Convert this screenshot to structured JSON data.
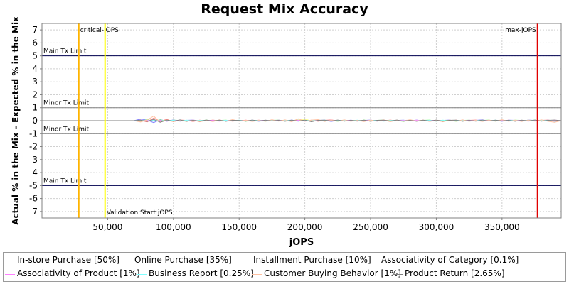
{
  "chart_data": {
    "type": "line",
    "title": "Request Mix Accuracy",
    "xlabel": "jOPS",
    "ylabel": "Actual % in the Mix - Expected % in the Mix",
    "xlim": [
      0,
      395000
    ],
    "ylim": [
      -7.5,
      7.5
    ],
    "x_ticks": [
      50000,
      100000,
      150000,
      200000,
      250000,
      300000,
      350000
    ],
    "x_tick_labels": [
      "50,000",
      "100,000",
      "150,000",
      "200,000",
      "250,000",
      "300,000",
      "350,000"
    ],
    "y_ticks": [
      7,
      6,
      5,
      4,
      3,
      2,
      1,
      0,
      -1,
      -2,
      -3,
      -4,
      -5,
      -6,
      -7
    ],
    "y_tick_labels": [
      "7",
      "6",
      "5",
      "4",
      "3",
      "2",
      "1",
      "0",
      "-1",
      "-2",
      "-3",
      "-4",
      "-5",
      "-6",
      "-7"
    ],
    "grid": true,
    "hlines": [
      {
        "y": 5,
        "label": "Main Tx Limit",
        "color": "#000050",
        "label_pos": "above"
      },
      {
        "y": 1,
        "label": "Minor Tx Limit",
        "color": "#808080",
        "label_pos": "above"
      },
      {
        "y": -1,
        "label": "Minor Tx Limit",
        "color": "#808080",
        "label_pos": "above"
      },
      {
        "y": -5,
        "label": "Main Tx Limit",
        "color": "#000050",
        "label_pos": "above"
      }
    ],
    "vlines": [
      {
        "x": 28000,
        "label": "critical-jOPS",
        "color": "#ffb400",
        "label_pos": "top-right"
      },
      {
        "x": 48000,
        "label": "Validation Start jOPS",
        "color": "#ffff00",
        "label_pos": "bottom-right"
      },
      {
        "x": 377000,
        "label": "max-jOPS",
        "color": "#e00000",
        "label_pos": "top-left"
      }
    ],
    "x": [
      0,
      5000,
      10000,
      15000,
      20000,
      25000,
      30000,
      35000,
      40000,
      45000,
      50000,
      55000,
      60000,
      65000,
      70000,
      75000,
      80000,
      85000,
      90000,
      95000,
      100000,
      105000,
      110000,
      115000,
      120000,
      125000,
      130000,
      135000,
      140000,
      145000,
      150000,
      155000,
      160000,
      165000,
      170000,
      175000,
      180000,
      185000,
      190000,
      195000,
      200000,
      205000,
      210000,
      215000,
      220000,
      225000,
      230000,
      235000,
      240000,
      245000,
      250000,
      255000,
      260000,
      265000,
      270000,
      275000,
      280000,
      285000,
      290000,
      295000,
      300000,
      305000,
      310000,
      315000,
      320000,
      325000,
      330000,
      335000,
      340000,
      345000,
      350000,
      355000,
      360000,
      365000,
      370000,
      375000,
      380000,
      385000,
      390000,
      395000
    ],
    "series": [
      {
        "name": "In-store Purchase [50%]",
        "color": "#ff8080",
        "values": [
          0,
          0,
          0,
          0,
          0,
          0,
          0,
          0,
          0,
          0,
          0,
          0,
          0,
          0,
          0,
          0.05,
          -0.1,
          0.2,
          -0.05,
          0.1,
          -0.08,
          0.05,
          0.02,
          -0.06,
          0.04,
          -0.03,
          0.05,
          -0.02,
          0.03,
          -0.04,
          0.02,
          0.01,
          -0.03,
          0.04,
          -0.02,
          0.03,
          -0.01,
          0.02,
          -0.03,
          0.05,
          -0.02,
          0.04,
          -0.05,
          0.03,
          0.06,
          -0.02,
          0.04,
          -0.03,
          0.02,
          0.01,
          -0.04,
          0.03,
          -0.02,
          0.05,
          -0.03,
          0.02,
          0.04,
          -0.02,
          0.03,
          -0.05,
          0.02,
          0.01,
          -0.03,
          0.04,
          -0.02,
          0.03,
          0.05,
          -0.04,
          0.02,
          0.03,
          -0.02,
          0.04,
          -0.03,
          0.02,
          0.01,
          -0.02,
          0.03,
          0.05,
          -0.02,
          0.0
        ]
      },
      {
        "name": "Online Purchase [35%]",
        "color": "#8080ff",
        "values": [
          0,
          0,
          0,
          0,
          0,
          0,
          0,
          0,
          0,
          0,
          0,
          0,
          0,
          0,
          0,
          0.12,
          0.05,
          -0.15,
          0.08,
          -0.05,
          0.06,
          -0.04,
          0.03,
          0.05,
          -0.03,
          0.02,
          -0.04,
          0.05,
          -0.02,
          0.03,
          0.01,
          -0.03,
          0.04,
          -0.05,
          0.02,
          -0.03,
          0.04,
          -0.02,
          0.05,
          -0.04,
          0.03,
          -0.05,
          0.02,
          0.04,
          -0.06,
          0.03,
          -0.02,
          0.04,
          -0.03,
          0.02,
          0.05,
          -0.04,
          0.03,
          -0.05,
          0.02,
          0.04,
          -0.03,
          0.05,
          -0.02,
          0.03,
          -0.04,
          0.02,
          0.05,
          -0.03,
          0.04,
          -0.02,
          0.03,
          0.06,
          -0.03,
          0.02,
          -0.05,
          0.04,
          0.03,
          -0.04,
          0.05,
          0.02,
          -0.03,
          0.04,
          -0.05,
          0.0
        ]
      },
      {
        "name": "Installment Purchase [10%]",
        "color": "#80ff80",
        "values": [
          0,
          0,
          0,
          0,
          0,
          0,
          0,
          0,
          0,
          0,
          0,
          0,
          0,
          0,
          0,
          -0.05,
          0.08,
          -0.04,
          0.06,
          -0.03,
          0.04,
          0.02,
          -0.05,
          0.03,
          -0.02,
          0.05,
          -0.03,
          0.02,
          0.04,
          -0.02,
          0.03,
          -0.05,
          0.02,
          0.03,
          -0.04,
          0.02,
          0.05,
          -0.03,
          0.02,
          0.04,
          -0.02,
          0.03,
          0.05,
          -0.04,
          0.02,
          -0.05,
          0.03,
          0.02,
          -0.04,
          0.05,
          -0.02,
          0.03,
          0.04,
          -0.03,
          0.02,
          -0.06,
          0.04,
          -0.02,
          0.03,
          0.05,
          -0.04,
          0.02,
          0.03,
          -0.05,
          0.02,
          0.04,
          -0.03,
          0.02,
          0.05,
          -0.04,
          0.03,
          -0.02,
          0.04,
          0.02,
          -0.03,
          0.05,
          -0.02,
          0.03,
          0.02,
          0.0
        ]
      },
      {
        "name": "Associativity of Category [0.1%]",
        "color": "#ffff80",
        "values": [
          0,
          0,
          0,
          0,
          0,
          0,
          0,
          0,
          0,
          0,
          0,
          0,
          0,
          0,
          0,
          0.02,
          -0.02,
          0.03,
          -0.01,
          0.02,
          -0.02,
          0.01,
          0.02,
          -0.01,
          0.02,
          -0.02,
          0.01,
          0.02,
          -0.01,
          0.02,
          -0.02,
          0.01,
          0.02,
          -0.01,
          0.02,
          -0.02,
          0.01,
          0.02,
          -0.01,
          0.02,
          0.12,
          -0.02,
          0.01,
          0.02,
          -0.01,
          0.02,
          -0.02,
          0.01,
          0.02,
          -0.01,
          0.02,
          -0.02,
          0.01,
          0.02,
          -0.01,
          0.02,
          -0.02,
          0.01,
          0.02,
          -0.01,
          0.02,
          -0.02,
          0.01,
          0.02,
          -0.01,
          0.02,
          -0.02,
          0.01,
          0.02,
          -0.01,
          0.02,
          -0.02,
          0.01,
          0.02,
          -0.01,
          0.02,
          -0.02,
          0.01,
          0.02,
          0.0
        ]
      },
      {
        "name": "Associativity of Product [1%]",
        "color": "#ff80ff",
        "values": [
          0,
          0,
          0,
          0,
          0,
          0,
          0,
          0,
          0,
          0,
          0,
          0,
          0,
          0,
          0,
          -0.03,
          0.04,
          -0.02,
          0.03,
          -0.04,
          0.02,
          0.03,
          -0.02,
          0.04,
          -0.03,
          0.02,
          0.03,
          -0.04,
          0.02,
          0.03,
          -0.02,
          0.04,
          -0.03,
          0.02,
          0.03,
          -0.02,
          0.04,
          -0.03,
          0.02,
          0.03,
          -0.04,
          0.02,
          0.03,
          -0.02,
          0.04,
          -0.03,
          0.02,
          0.03,
          -0.04,
          0.02,
          0.03,
          -0.02,
          0.04,
          -0.03,
          0.02,
          0.03,
          -0.02,
          0.04,
          -0.03,
          0.02,
          0.03,
          -0.04,
          0.02,
          0.03,
          -0.02,
          0.04,
          -0.03,
          0.02,
          0.03,
          -0.02,
          0.04,
          -0.03,
          0.02,
          0.03,
          -0.04,
          0.02,
          0.03,
          -0.02,
          0.04,
          0.0
        ]
      },
      {
        "name": "Business Report [0.25%]",
        "color": "#80ffff",
        "values": [
          0,
          0,
          0,
          0,
          0,
          0,
          0,
          0,
          0,
          0,
          0,
          0,
          0,
          0,
          0,
          0.03,
          -0.02,
          0.04,
          -0.03,
          0.02,
          0.03,
          -0.02,
          0.04,
          -0.03,
          0.02,
          0.03,
          -0.04,
          0.02,
          0.03,
          -0.02,
          0.04,
          -0.03,
          0.02,
          0.03,
          -0.02,
          0.04,
          -0.03,
          0.02,
          0.03,
          -0.04,
          0.02,
          0.03,
          -0.02,
          0.04,
          -0.03,
          0.02,
          0.03,
          -0.02,
          0.04,
          -0.03,
          0.02,
          0.03,
          -0.04,
          0.02,
          0.03,
          -0.02,
          0.04,
          -0.03,
          0.02,
          0.03,
          -0.02,
          0.04,
          -0.03,
          0.02,
          0.03,
          -0.04,
          0.02,
          0.03,
          -0.02,
          0.04,
          -0.03,
          0.02,
          0.03,
          -0.02,
          0.04,
          -0.03,
          0.02,
          0.03,
          -0.04,
          0.0
        ]
      },
      {
        "name": "Customer Buying Behavior [1%]",
        "color": "#ffc0a0",
        "values": [
          0,
          0,
          0,
          0,
          0,
          0,
          0,
          0,
          0,
          0,
          0,
          0,
          0,
          0,
          0,
          -0.1,
          0.05,
          0.35,
          -0.12,
          0.06,
          -0.08,
          0.04,
          -0.06,
          0.05,
          -0.09,
          0.03,
          -0.07,
          0.06,
          -0.05,
          0.08,
          -0.04,
          0.05,
          -0.06,
          0.03,
          -0.05,
          0.07,
          -0.04,
          0.06,
          -0.08,
          0.15,
          -0.05,
          0.04,
          0.08,
          -0.06,
          0.05,
          -0.04,
          0.06,
          -0.05,
          0.03,
          -0.07,
          0.05,
          -0.04,
          0.06,
          -0.08,
          0.04,
          -0.05,
          0.07,
          -0.04,
          0.05,
          -0.06,
          0.04,
          -0.09,
          0.05,
          -0.04,
          0.06,
          -0.05,
          0.03,
          -0.06,
          0.05,
          -0.04,
          0.07,
          -0.05,
          0.04,
          -0.06,
          0.05,
          -0.04,
          0.06,
          -0.05,
          -0.12,
          0.0
        ]
      },
      {
        "name": "Product Return [2.65%]",
        "color": "#808080",
        "values": [
          0,
          0,
          0,
          0,
          0,
          0,
          0,
          0,
          0,
          0,
          0,
          0,
          0,
          0,
          0,
          0.04,
          -0.06,
          0.1,
          -0.12,
          0.05,
          -0.04,
          0.06,
          -0.05,
          0.03,
          -0.04,
          0.05,
          -0.03,
          0.04,
          -0.05,
          0.03,
          0.02,
          -0.04,
          0.05,
          -0.03,
          0.04,
          -0.02,
          0.03,
          -0.05,
          0.04,
          -0.03,
          0.05,
          -0.08,
          0.03,
          0.04,
          -0.03,
          0.05,
          -0.04,
          0.03,
          -0.02,
          0.04,
          -0.05,
          0.03,
          0.04,
          -0.03,
          0.05,
          -0.04,
          0.03,
          -0.05,
          0.04,
          -0.03,
          0.05,
          -0.04,
          0.03,
          0.04,
          -0.05,
          0.03,
          -0.04,
          0.05,
          -0.03,
          0.04,
          -0.02,
          0.03,
          -0.05,
          0.04,
          -0.03,
          0.05,
          -0.04,
          0.03,
          0.05,
          0.0
        ]
      }
    ]
  }
}
